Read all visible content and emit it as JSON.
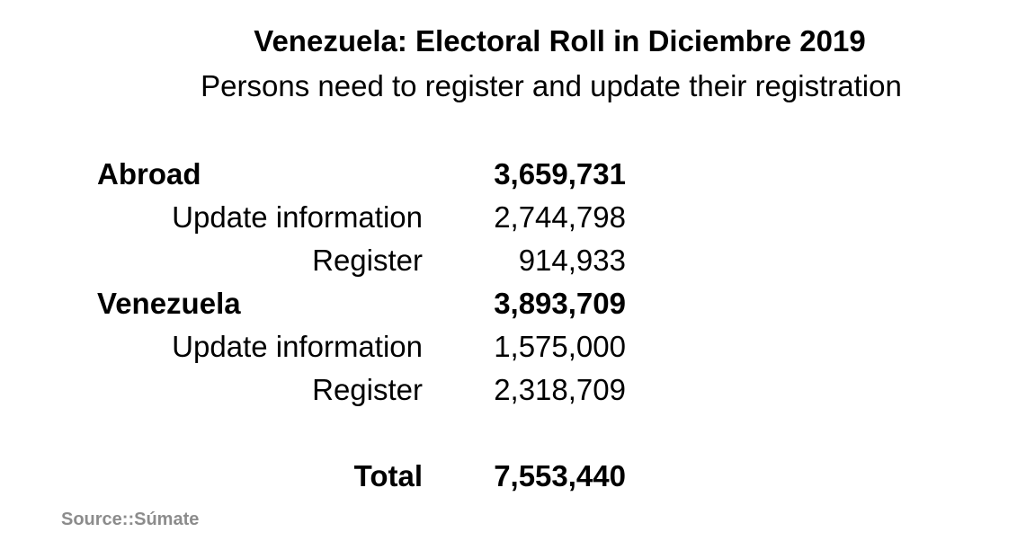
{
  "title": "Venezuela: Electoral Roll in Diciembre 2019",
  "subtitle": "Persons need to register and update their registration",
  "groups": [
    {
      "label": "Abroad",
      "value": "3,659,731",
      "rows": [
        {
          "label": "Update information",
          "value": "2,744,798"
        },
        {
          "label": "Register",
          "value": "914,933"
        }
      ]
    },
    {
      "label": "Venezuela",
      "value": "3,893,709",
      "rows": [
        {
          "label": "Update information",
          "value": "1,575,000"
        },
        {
          "label": "Register",
          "value": "2,318,709"
        }
      ]
    }
  ],
  "total": {
    "label": "Total",
    "value": "7,553,440"
  },
  "source": "Source::Súmate"
}
